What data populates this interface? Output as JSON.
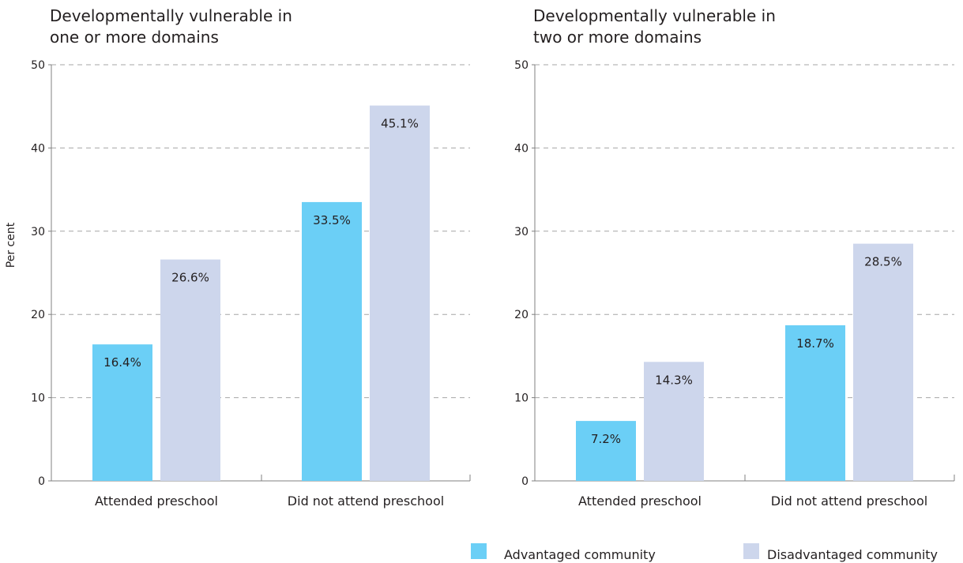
{
  "chart_data": [
    {
      "type": "bar",
      "title_lines": [
        "Developmentally vulnerable in",
        "one or more domains"
      ],
      "ylabel": "Per cent",
      "xlabel": "",
      "ylim": [
        0,
        50
      ],
      "yticks": [
        0,
        10,
        20,
        30,
        40,
        50
      ],
      "categories": [
        "Attended preschool",
        "Did not attend preschool"
      ],
      "series": [
        {
          "name": "Advantaged community",
          "values": [
            16.4,
            33.5
          ],
          "labels": [
            "16.4%",
            "33.5%"
          ]
        },
        {
          "name": "Disadvantaged community",
          "values": [
            26.6,
            45.1
          ],
          "labels": [
            "26.6%",
            "45.1%"
          ]
        }
      ],
      "grid": true
    },
    {
      "type": "bar",
      "title_lines": [
        "Developmentally vulnerable in",
        "two or more domains"
      ],
      "ylabel": "",
      "xlabel": "",
      "ylim": [
        0,
        50
      ],
      "yticks": [
        0,
        10,
        20,
        30,
        40,
        50
      ],
      "categories": [
        "Attended preschool",
        "Did not attend preschool"
      ],
      "series": [
        {
          "name": "Advantaged community",
          "values": [
            7.2,
            18.7
          ],
          "labels": [
            "7.2%",
            "18.7%"
          ]
        },
        {
          "name": "Disadvantaged community",
          "values": [
            14.3,
            28.5
          ],
          "labels": [
            "14.3%",
            "28.5%"
          ]
        }
      ],
      "grid": true
    }
  ],
  "legend": {
    "placement": "bottom-right",
    "items": [
      {
        "label": "Advantaged community",
        "color": "#6bcff6"
      },
      {
        "label": "Disadvantaged community",
        "color": "#cdd6ec"
      }
    ]
  },
  "colors": {
    "advantaged": "#6bcff6",
    "disadvantaged": "#cdd6ec",
    "axis": "#808080",
    "grid": "#a6a6a6",
    "text": "#231f20"
  }
}
